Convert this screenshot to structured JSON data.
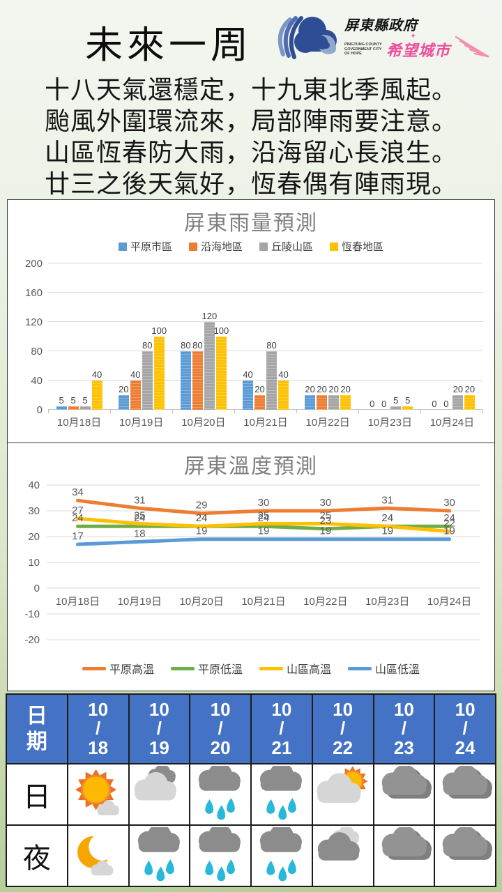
{
  "page": {
    "title": "未來一周",
    "logo": {
      "org_name": "屏東縣政府",
      "org_subtext": "PINGTUNG COUNTY GOVERNMENT CITY OF HOPE",
      "slogan": "希望城市",
      "sparkle": "✦"
    },
    "poem_lines": [
      "十八天氣還穩定，十九東北季風起。",
      "颱風外圍環流來，局部陣雨要注意。",
      "山區恆春防大雨，沿海留心長浪生。",
      "廿三之後天氣好，恆春偶有陣雨現。"
    ]
  },
  "chart_data": [
    {
      "type": "bar",
      "title": "屏東雨量預測",
      "categories": [
        "10月18日",
        "10月19日",
        "10月20日",
        "10月21日",
        "10月22日",
        "10月23日",
        "10月24日"
      ],
      "series": [
        {
          "name": "平原市區",
          "color": "#5B9BD5",
          "values": [
            5,
            20,
            80,
            40,
            20,
            0,
            0
          ]
        },
        {
          "name": "沿海地區",
          "color": "#ED7D31",
          "values": [
            5,
            40,
            80,
            20,
            20,
            0,
            0
          ]
        },
        {
          "name": "丘陵山區",
          "color": "#A5A5A5",
          "values": [
            5,
            80,
            120,
            80,
            20,
            5,
            20
          ]
        },
        {
          "name": "恆春地區",
          "color": "#FFC000",
          "values": [
            40,
            100,
            100,
            40,
            20,
            5,
            20
          ]
        }
      ],
      "ylim": [
        0,
        200
      ],
      "ytick_step": 40,
      "legend_position": "top",
      "grid": true,
      "data_labels": true
    },
    {
      "type": "line",
      "title": "屏東溫度預測",
      "categories": [
        "10月18日",
        "10月19日",
        "10月20日",
        "10月21日",
        "10月22日",
        "10月23日",
        "10月24日"
      ],
      "series": [
        {
          "name": "平原高溫",
          "color": "#ED7D31",
          "values": [
            34,
            31,
            29,
            30,
            30,
            31,
            30
          ]
        },
        {
          "name": "平原低溫",
          "color": "#70AD47",
          "values": [
            24,
            24,
            24,
            24,
            23,
            24,
            24
          ]
        },
        {
          "name": "山區高溫",
          "color": "#FFC000",
          "values": [
            27,
            25,
            24,
            25,
            25,
            24,
            22
          ]
        },
        {
          "name": "山區低溫",
          "color": "#5B9BD5",
          "values": [
            17,
            18,
            19,
            19,
            19,
            19,
            19
          ]
        }
      ],
      "ylim": [
        -20,
        40
      ],
      "ytick_step": 10,
      "legend_position": "bottom",
      "grid": true,
      "data_labels": true
    }
  ],
  "forecast_table": {
    "corner_header": "日期",
    "dates": [
      {
        "month": "10",
        "day": "18"
      },
      {
        "month": "10",
        "day": "19"
      },
      {
        "month": "10",
        "day": "20"
      },
      {
        "month": "10",
        "day": "21"
      },
      {
        "month": "10",
        "day": "22"
      },
      {
        "month": "10",
        "day": "23"
      },
      {
        "month": "10",
        "day": "24"
      }
    ],
    "rows": [
      {
        "label": "日",
        "icons": [
          "sunny",
          "mostly-cloudy",
          "rain",
          "rain",
          "sun-behind-cloud",
          "overcast",
          "overcast"
        ]
      },
      {
        "label": "夜",
        "icons": [
          "moon-cloud",
          "rain",
          "rain",
          "rain",
          "cloudy-dark",
          "overcast",
          "overcast"
        ]
      }
    ]
  },
  "colors": {
    "table_header_bg": "#4472C4",
    "table_label_bg": "#FBE5A3",
    "chart_title": "#7F7F7F",
    "axis_label": "#595959",
    "data_label": "#3F3F3F",
    "grid_line": "#D9D9D9",
    "icon_sun": "#FFB900",
    "icon_ray": "#ED7021",
    "icon_drop": "#29B8DC",
    "icon_moon": "#F7A600",
    "cloud_light": "#D6D6D6",
    "cloud_mid": "#A9A9A9",
    "cloud_dark": "#8C8C8C",
    "logo_navy": "#2F4D95",
    "logo_lightblue": "#7D97C4",
    "logo_pink": "#EE4D9B"
  }
}
